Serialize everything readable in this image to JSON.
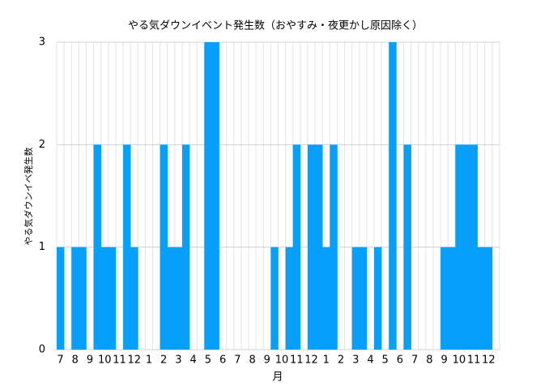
{
  "chart_data": {
    "type": "bar",
    "title": "やる気ダウンイベント発生数（おやすみ・夜更かし原因除く）",
    "y_label": "やる気ダウンイベ発生数",
    "x_label": "月",
    "categories": [
      "7",
      null,
      "8",
      null,
      "9",
      null,
      "10",
      null,
      "11",
      null,
      "12",
      null,
      "1",
      null,
      "2",
      null,
      "3",
      null,
      "4",
      null,
      "5",
      null,
      "6",
      null,
      "7",
      null,
      "8",
      null,
      "9",
      null,
      "10",
      null,
      "11",
      null,
      "12",
      null,
      "1",
      null,
      "2",
      null,
      "3",
      null,
      "4",
      null,
      "5",
      null,
      "6",
      null,
      "7",
      null,
      "8",
      null,
      "9",
      null,
      "10",
      null,
      "11",
      null,
      "12",
      null
    ],
    "values": [
      1,
      0,
      1,
      1,
      0,
      2,
      1,
      1,
      0,
      2,
      1,
      0,
      0,
      0,
      2,
      1,
      1,
      2,
      0,
      0,
      3,
      3,
      0,
      0,
      0,
      0,
      0,
      0,
      0,
      1,
      0,
      1,
      2,
      0,
      2,
      2,
      1,
      2,
      0,
      0,
      1,
      1,
      0,
      1,
      0,
      3,
      0,
      2,
      0,
      0,
      0,
      0,
      1,
      1,
      2,
      2,
      2,
      1,
      1,
      0
    ],
    "color": "#069ffa",
    "ylim": [
      0,
      3
    ],
    "yticks": [
      0,
      1,
      2,
      3
    ],
    "grid": true
  }
}
